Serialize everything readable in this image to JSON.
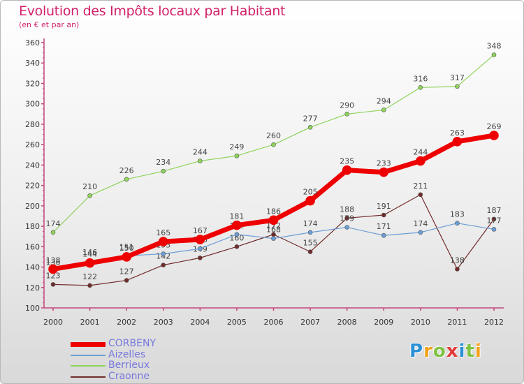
{
  "title": "Evolution des Impôts locaux par Habitant",
  "subtitle": "(en € et par an)",
  "logo_letters": [
    "P",
    "r",
    "o",
    "x",
    "i",
    "t",
    "i"
  ],
  "logo_colors": [
    "#2a8fd6",
    "#f3a11b",
    "#7fc242",
    "#e23a3a",
    "#2a8fd6",
    "#7fc242",
    "#f3a11b"
  ],
  "chart_data": {
    "type": "line",
    "x": [
      "2000",
      "2001",
      "2002",
      "2003",
      "2004",
      "2005",
      "2006",
      "2007",
      "2008",
      "2009",
      "2010",
      "2011",
      "2012"
    ],
    "ylim": [
      100,
      360
    ],
    "yticks": [
      100,
      120,
      140,
      160,
      180,
      200,
      220,
      240,
      260,
      280,
      300,
      320,
      340,
      360
    ],
    "grid": false,
    "legend_position": "bottom-left",
    "series": [
      {
        "name": "Craonne",
        "color": "#722b2b",
        "values": [
          123,
          122,
          127,
          142,
          149,
          160,
          172,
          155,
          188,
          191,
          211,
          138,
          187
        ],
        "labels": [
          "123",
          "122",
          "127",
          "142",
          "149",
          "160",
          "172",
          "155",
          "188",
          "191",
          "211",
          "138",
          "187"
        ]
      },
      {
        "name": "Aizelles",
        "color": "#6b9ed6",
        "values": [
          136,
          146,
          151,
          153,
          158,
          172,
          168,
          174,
          179,
          171,
          174,
          183,
          177
        ],
        "labels": [
          "136",
          "146",
          "151",
          "153",
          "158",
          "172",
          "168",
          "174",
          "179",
          "171",
          "174",
          "183",
          "177"
        ]
      },
      {
        "name": "Berrieux",
        "color": "#8fd35a",
        "values": [
          174,
          210,
          226,
          234,
          244,
          249,
          260,
          277,
          290,
          294,
          316,
          317,
          348
        ],
        "labels": [
          "174",
          "210",
          "226",
          "234",
          "244",
          "249",
          "260",
          "277",
          "290",
          "294",
          "316",
          "317",
          "348"
        ]
      },
      {
        "name": "CORBENY",
        "color": "#ee0000",
        "values": [
          138,
          144,
          150,
          165,
          167,
          181,
          186,
          205,
          235,
          233,
          244,
          263,
          269
        ],
        "labels": [
          "138",
          "144",
          "150",
          "165",
          "167",
          "181",
          "186",
          "205",
          "235",
          "233",
          "244",
          "263",
          "269"
        ]
      }
    ],
    "legend_order": [
      "CORBENY",
      "Aizelles",
      "Berrieux",
      "Craonne"
    ]
  }
}
